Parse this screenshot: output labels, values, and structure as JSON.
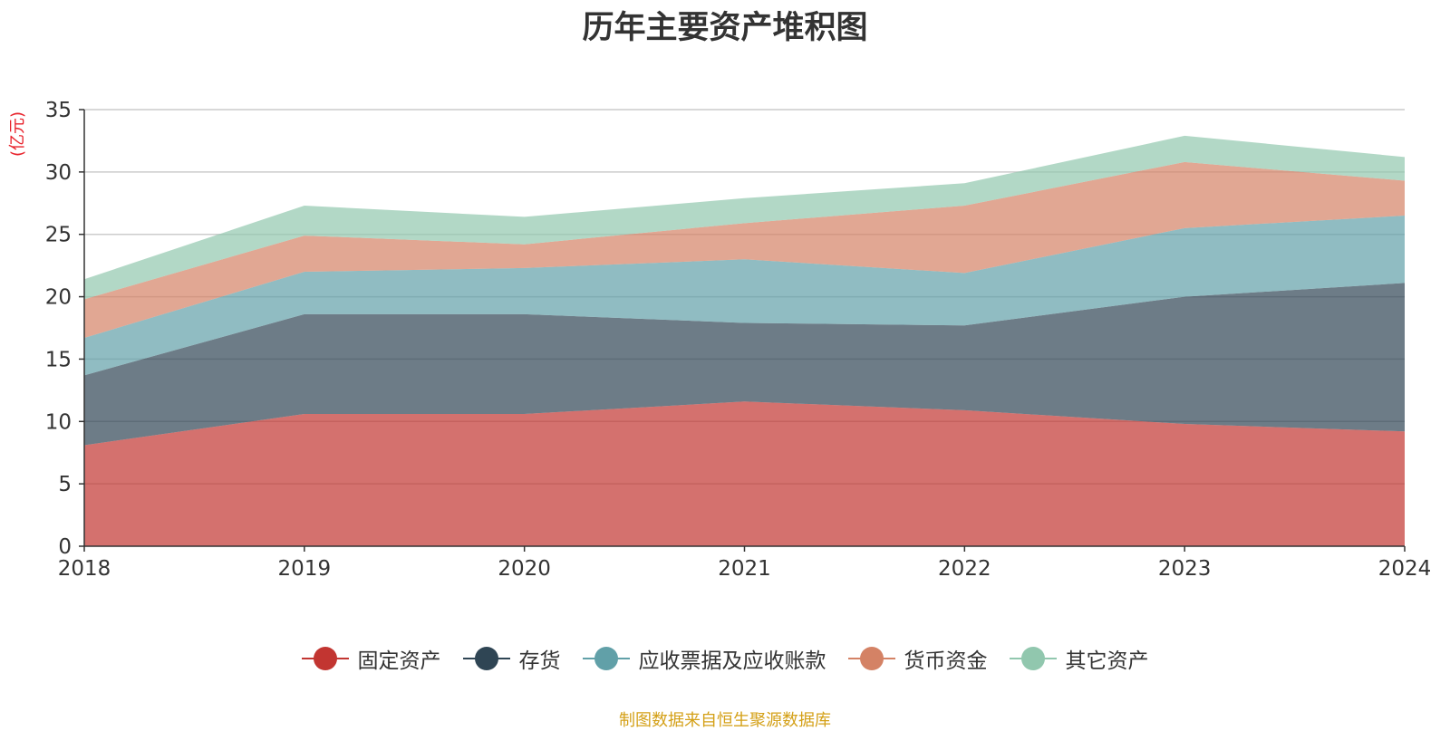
{
  "title": "历年主要资产堆积图",
  "unit_label": "(亿元)",
  "source": "制图数据来自恒生聚源数据库",
  "chart_data": {
    "type": "area",
    "stacked": true,
    "categories": [
      "2018",
      "2019",
      "2020",
      "2021",
      "2022",
      "2023",
      "2024"
    ],
    "ylim": [
      0,
      35
    ],
    "yticks": [
      0,
      5,
      10,
      15,
      20,
      25,
      30,
      35
    ],
    "grid": true,
    "legend_position": "bottom",
    "series": [
      {
        "name": "固定资产",
        "color": "#c23531",
        "values": [
          8.1,
          10.6,
          10.6,
          11.6,
          10.9,
          9.8,
          9.2
        ]
      },
      {
        "name": "存货",
        "color": "#2f4554",
        "values": [
          5.6,
          8.0,
          8.0,
          6.3,
          6.8,
          10.2,
          11.9
        ]
      },
      {
        "name": "应收票据及应收账款",
        "color": "#61a0a8",
        "values": [
          3.0,
          3.4,
          3.7,
          5.1,
          4.2,
          5.5,
          5.4
        ]
      },
      {
        "name": "货币资金",
        "color": "#d48265",
        "values": [
          3.1,
          2.9,
          1.9,
          2.9,
          5.4,
          5.3,
          2.8
        ]
      },
      {
        "name": "其它资产",
        "color": "#91c7ae",
        "values": [
          1.6,
          2.4,
          2.2,
          2.0,
          1.8,
          2.1,
          1.9
        ]
      }
    ]
  }
}
